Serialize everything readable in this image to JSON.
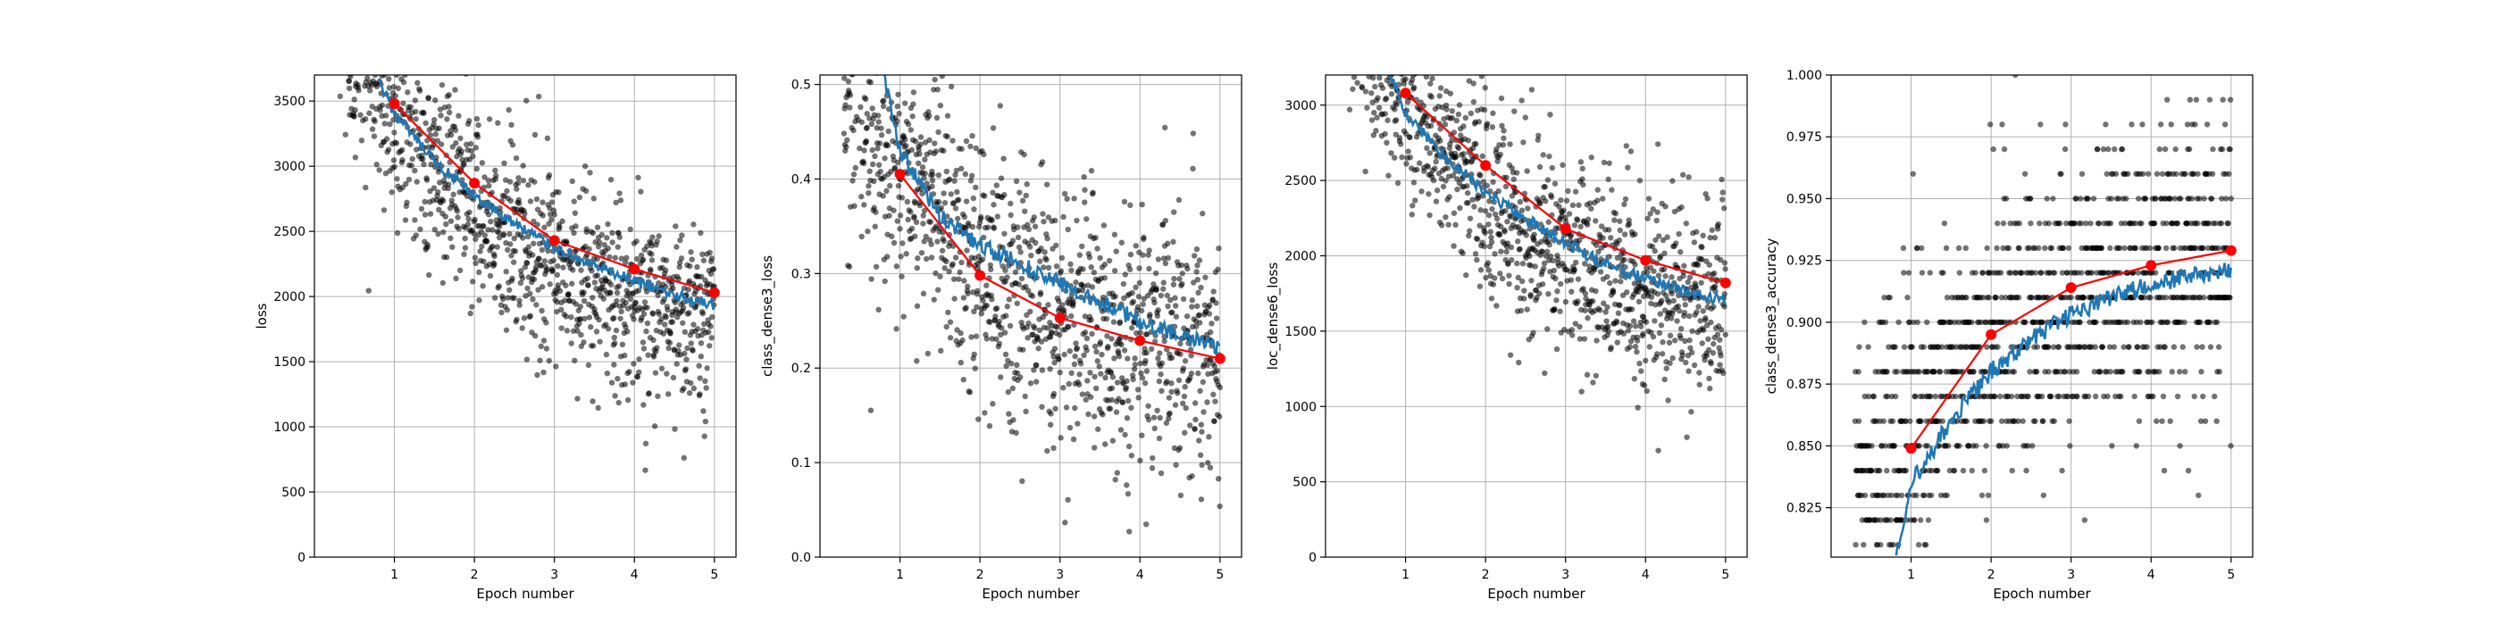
{
  "chart_data": [
    {
      "type": "scatter",
      "xlabel": "Epoch number",
      "ylabel": "loss",
      "xlim": [
        0,
        5.27
      ],
      "ylim": [
        0,
        3700
      ],
      "xticks": [
        1,
        2,
        3,
        4,
        5
      ],
      "yticks": [
        0,
        500,
        1000,
        1500,
        2000,
        2500,
        3000,
        3500
      ],
      "ytick_labels": [
        "0",
        "500",
        "1000",
        "1500",
        "2000",
        "2500",
        "3000",
        "3500"
      ],
      "grid": true,
      "epoch_points": {
        "x": [
          1,
          2,
          3,
          4,
          5
        ],
        "y": [
          3480,
          2870,
          2430,
          2210,
          2030
        ]
      },
      "scatter_trend": {
        "x_start": 0.3,
        "x_end": 5.0,
        "start": 4100,
        "end": 1900,
        "spread": 360
      },
      "smoothed_line": {
        "x": [
          0.8,
          1.0,
          1.5,
          2.0,
          2.5,
          3.0,
          3.5,
          4.0,
          4.5,
          5.0
        ],
        "y": [
          3650,
          3400,
          3030,
          2770,
          2560,
          2380,
          2230,
          2120,
          2010,
          1940
        ]
      }
    },
    {
      "type": "scatter",
      "xlabel": "Epoch number",
      "ylabel": "class_dense3_loss",
      "xlim": [
        0,
        5.27
      ],
      "ylim": [
        0,
        0.51
      ],
      "xticks": [
        1,
        2,
        3,
        4,
        5
      ],
      "yticks": [
        0,
        0.1,
        0.2,
        0.3,
        0.4,
        0.5
      ],
      "ytick_labels": [
        "0.0",
        "0.1",
        "0.2",
        "0.3",
        "0.4",
        "0.5"
      ],
      "grid": true,
      "epoch_points": {
        "x": [
          1,
          2,
          3,
          4,
          5
        ],
        "y": [
          0.405,
          0.298,
          0.253,
          0.229,
          0.21
        ]
      },
      "scatter_trend": {
        "x_start": 0.3,
        "x_end": 5.0,
        "start": 0.5,
        "end": 0.22,
        "spread": 0.07
      },
      "smoothed_line": {
        "x": [
          0.8,
          1.0,
          1.5,
          2.0,
          2.5,
          3.0,
          3.5,
          4.0,
          4.5,
          5.0
        ],
        "y": [
          0.51,
          0.43,
          0.36,
          0.33,
          0.31,
          0.29,
          0.27,
          0.25,
          0.235,
          0.22
        ]
      }
    },
    {
      "type": "scatter",
      "xlabel": "Epoch number",
      "ylabel": "loc_dense6_loss",
      "xlim": [
        0,
        5.27
      ],
      "ylim": [
        0,
        3200
      ],
      "xticks": [
        1,
        2,
        3,
        4,
        5
      ],
      "yticks": [
        0,
        500,
        1000,
        1500,
        2000,
        2500,
        3000
      ],
      "ytick_labels": [
        "0",
        "500",
        "1000",
        "1500",
        "2000",
        "2500",
        "3000"
      ],
      "grid": true,
      "epoch_points": {
        "x": [
          1,
          2,
          3,
          4,
          5
        ],
        "y": [
          3080,
          2600,
          2180,
          1970,
          1820
        ]
      },
      "scatter_trend": {
        "x_start": 0.3,
        "x_end": 5.0,
        "start": 3600,
        "end": 1700,
        "spread": 320
      },
      "smoothed_line": {
        "x": [
          0.8,
          1.0,
          1.5,
          2.0,
          2.5,
          3.0,
          3.5,
          4.0,
          4.5,
          5.0
        ],
        "y": [
          3200,
          2950,
          2650,
          2420,
          2250,
          2080,
          1950,
          1850,
          1760,
          1700
        ]
      }
    },
    {
      "type": "scatter",
      "xlabel": "Epoch number",
      "ylabel": "class_dense3_accuracy",
      "xlim": [
        0,
        5.27
      ],
      "ylim": [
        0.805,
        1.0
      ],
      "xticks": [
        1,
        2,
        3,
        4,
        5
      ],
      "yticks": [
        0.825,
        0.85,
        0.875,
        0.9,
        0.925,
        0.95,
        0.975,
        1.0
      ],
      "ytick_labels": [
        "0.825",
        "0.850",
        "0.875",
        "0.900",
        "0.925",
        "0.950",
        "0.975",
        "1.000"
      ],
      "grid": true,
      "epoch_points": {
        "x": [
          1,
          2,
          3,
          4,
          5
        ],
        "y": [
          0.849,
          0.895,
          0.914,
          0.923,
          0.929
        ]
      },
      "scatter_trend": {
        "x_start": 0.3,
        "x_end": 5.0,
        "start": 0.83,
        "end": 0.925,
        "spread": 0.03,
        "quantize": 0.01
      },
      "smoothed_line": {
        "x": [
          0.8,
          1.0,
          1.5,
          2.0,
          2.5,
          3.0,
          3.5,
          4.0,
          4.5,
          5.0
        ],
        "y": [
          0.805,
          0.835,
          0.86,
          0.88,
          0.893,
          0.903,
          0.91,
          0.915,
          0.919,
          0.921
        ]
      }
    }
  ],
  "colors": {
    "scatter": "#000000",
    "smoothed": "#1f77b4",
    "epoch": "#ff0000",
    "grid": "#b0b0b0"
  }
}
